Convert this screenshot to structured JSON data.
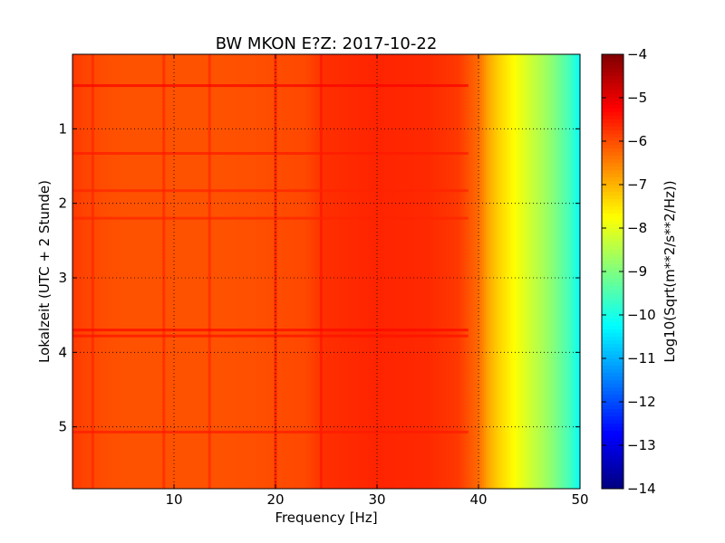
{
  "chart_data": {
    "type": "heatmap",
    "title": "BW MKON E?Z: 2017-10-22",
    "xlabel": "Frequency [Hz]",
    "ylabel": "Lokalzeit (UTC + 2 Stunde)",
    "colorbar_label": "Log10(Sqrt(m**2/s**2/Hz))",
    "colormap": "jet",
    "xlim": [
      0,
      50
    ],
    "ylim": [
      5.83,
      0
    ],
    "y_inverted": true,
    "xticks": [
      10,
      20,
      30,
      40,
      50
    ],
    "xtick_labels": [
      "10",
      "20",
      "30",
      "40",
      "50"
    ],
    "yticks": [
      1,
      2,
      3,
      4,
      5
    ],
    "ytick_labels": [
      "1",
      "2",
      "3",
      "4",
      "5"
    ],
    "clim": [
      -14,
      -4
    ],
    "cbar_ticks": [
      -4,
      -5,
      -6,
      -7,
      -8,
      -9,
      -10,
      -11,
      -12,
      -13,
      -14
    ],
    "cbar_tick_labels": [
      "−4",
      "−5",
      "−6",
      "−7",
      "−8",
      "−9",
      "−10",
      "−11",
      "−12",
      "−13",
      "−14"
    ],
    "grid": true,
    "spectrum_profile": {
      "frequency_hz": [
        0,
        1,
        3,
        5,
        8,
        10,
        15,
        20,
        23,
        25,
        30,
        35,
        38,
        40,
        41,
        42,
        43,
        44,
        45,
        46,
        47,
        48,
        49,
        50
      ],
      "level": [
        -5.8,
        -5.9,
        -6.0,
        -6.05,
        -6.05,
        -6.05,
        -6.05,
        -6.0,
        -5.95,
        -5.7,
        -5.6,
        -5.65,
        -5.8,
        -6.3,
        -6.9,
        -7.3,
        -7.6,
        -7.9,
        -8.2,
        -8.5,
        -8.8,
        -9.2,
        -9.6,
        -10.2
      ]
    },
    "horizontal_bands": [
      {
        "time_h": 0.42,
        "level": -5.2
      },
      {
        "time_h": 1.33,
        "level": -5.5
      },
      {
        "time_h": 1.83,
        "level": -5.6
      },
      {
        "time_h": 2.2,
        "level": -5.6
      },
      {
        "time_h": 3.7,
        "level": -5.3
      },
      {
        "time_h": 3.78,
        "level": -5.4
      },
      {
        "time_h": 5.07,
        "level": -5.5
      }
    ],
    "vertical_bands": [
      {
        "frequency_hz": 2.0,
        "level": -5.6
      },
      {
        "frequency_hz": 9.0,
        "level": -5.6
      },
      {
        "frequency_hz": 13.5,
        "level": -5.6
      },
      {
        "frequency_hz": 20.0,
        "level": -5.4
      },
      {
        "frequency_hz": 24.5,
        "level": -5.4
      }
    ]
  }
}
